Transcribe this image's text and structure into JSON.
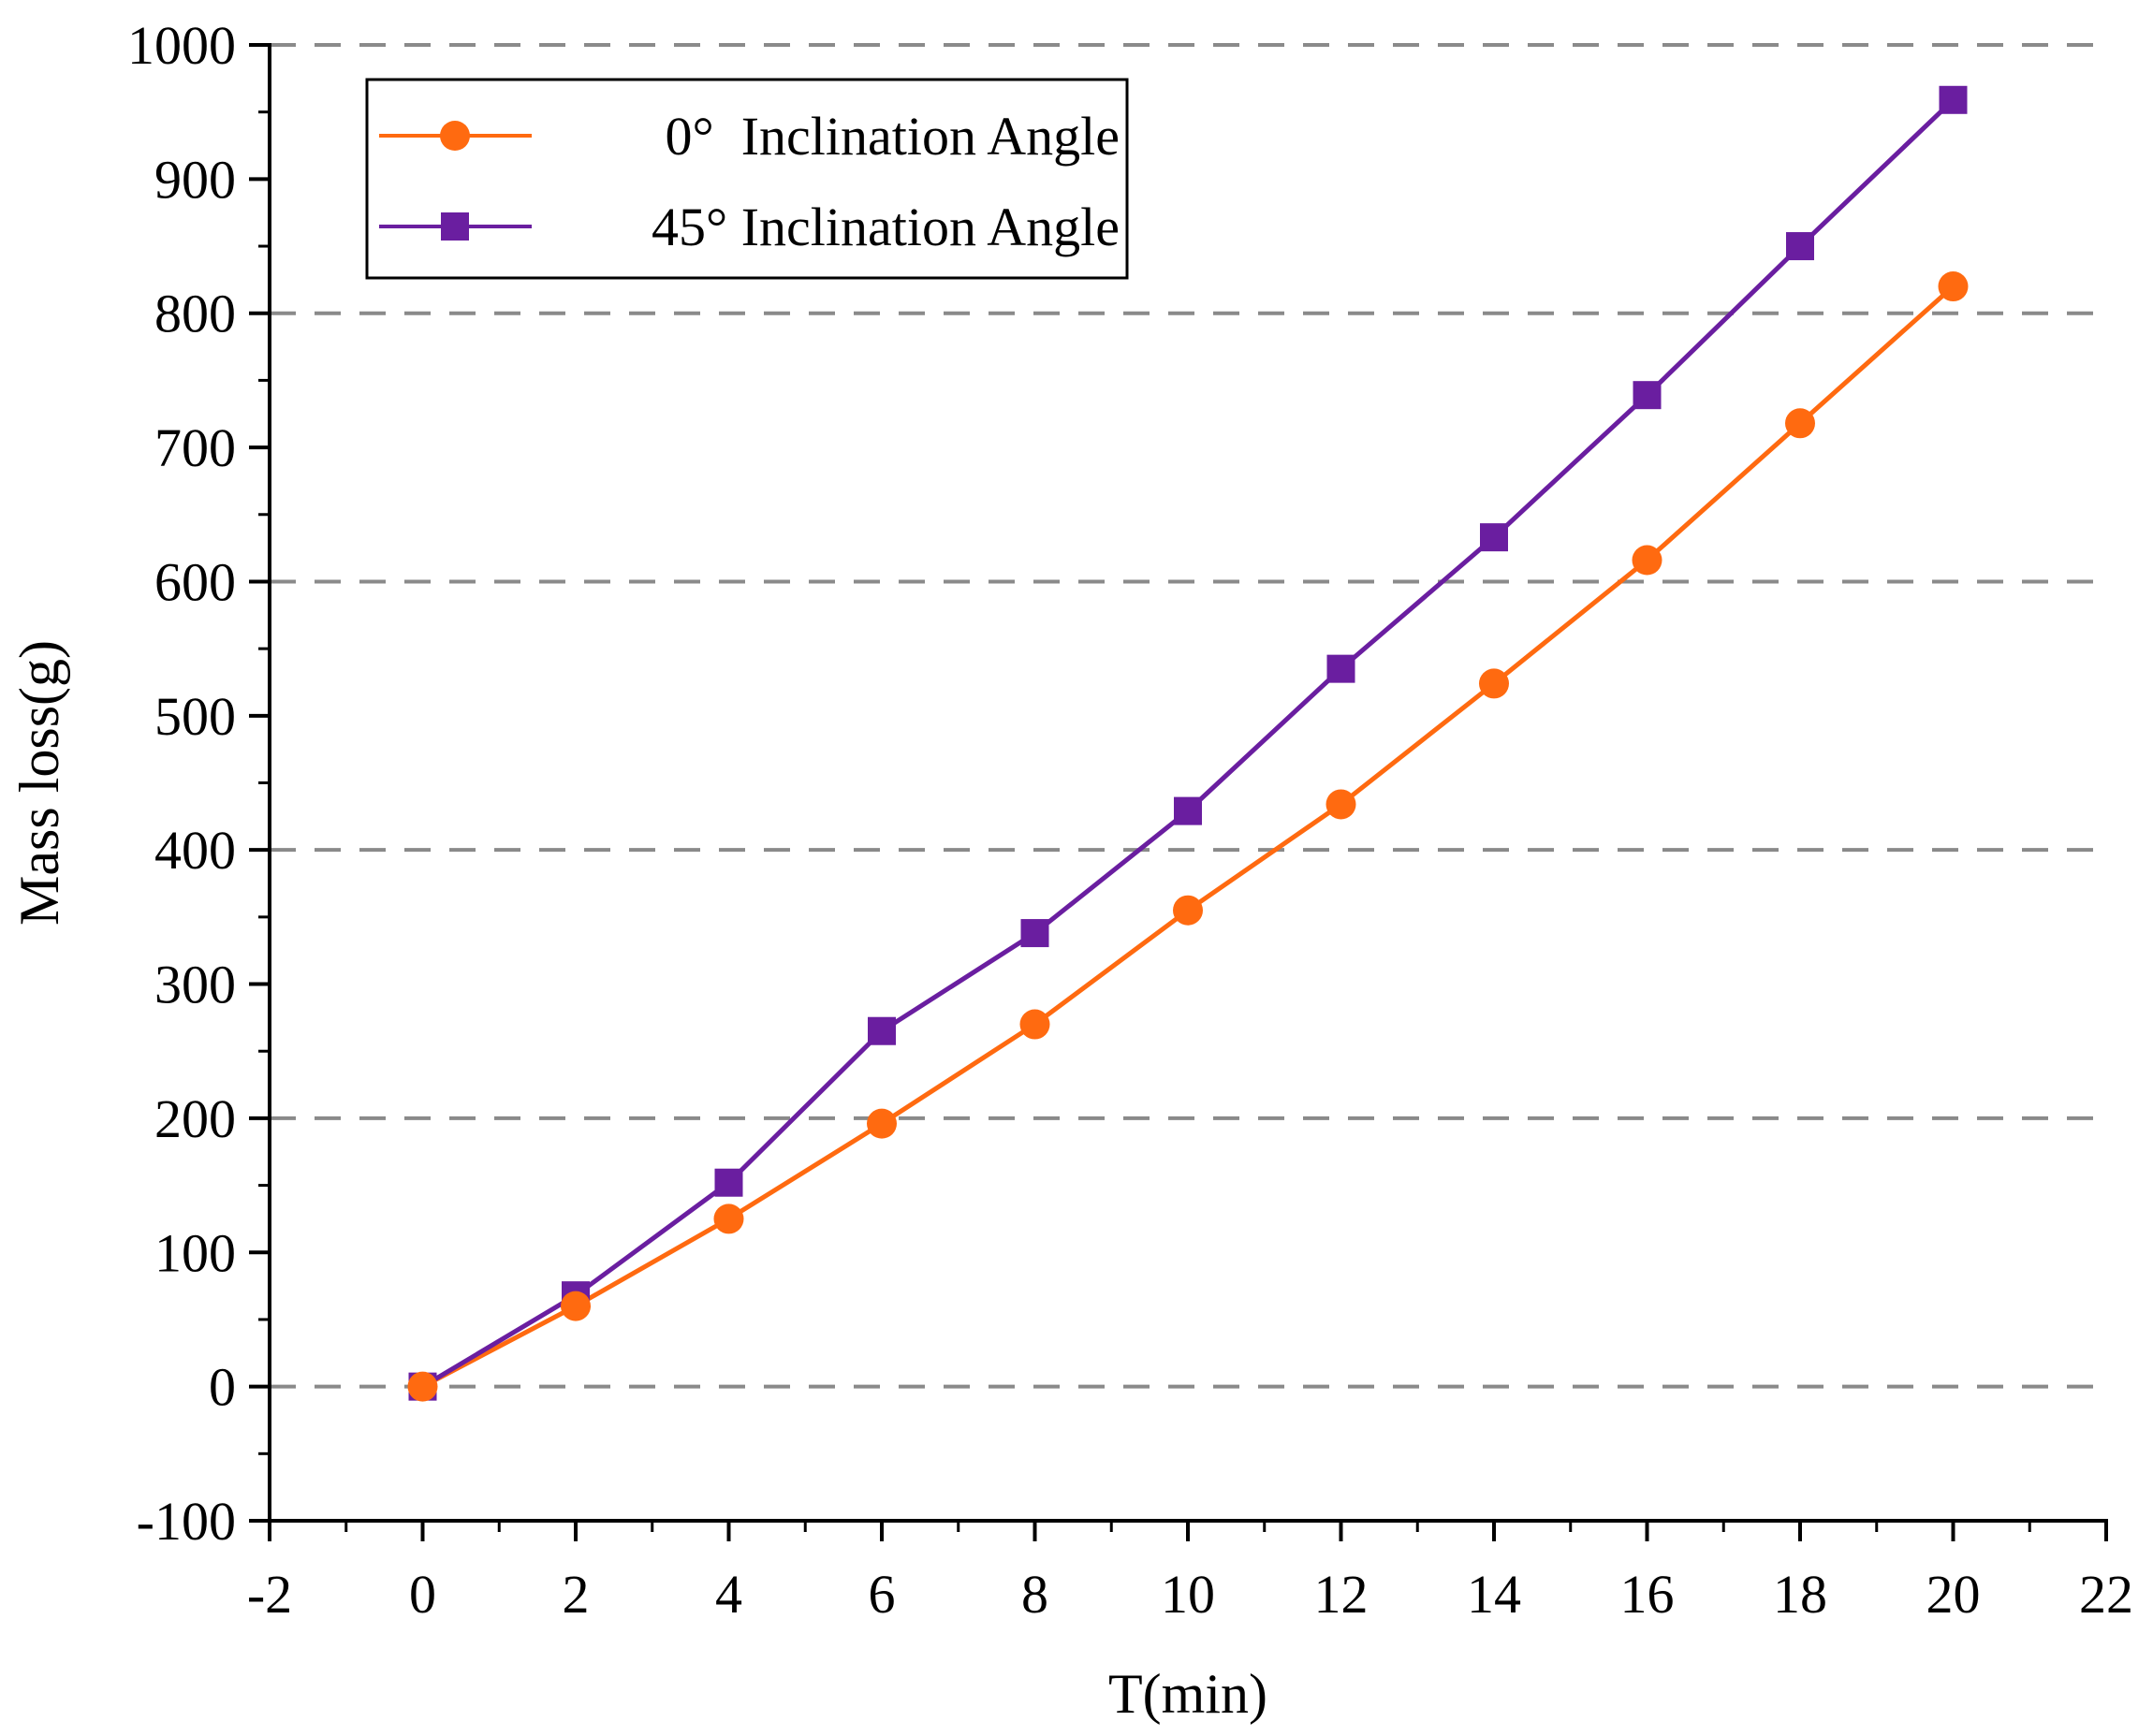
{
  "chart_data": {
    "type": "line",
    "title": "",
    "xlabel": "T(min)",
    "ylabel": "Mass loss(g)",
    "xlim": [
      -2,
      22
    ],
    "ylim": [
      -100,
      1000
    ],
    "x_ticks": [
      -2,
      0,
      2,
      4,
      6,
      8,
      10,
      12,
      14,
      16,
      18,
      20,
      22
    ],
    "x_tick_labels": [
      "-2",
      "0",
      "2",
      "4",
      "6",
      "8",
      "10",
      "12",
      "14",
      "16",
      "18",
      "20",
      "22"
    ],
    "y_ticks": [
      -100,
      0,
      100,
      200,
      300,
      400,
      500,
      600,
      700,
      800,
      900,
      1000
    ],
    "y_tick_labels": [
      "-100",
      "0",
      "100",
      "200",
      "300",
      "400",
      "500",
      "600",
      "700",
      "800",
      "900",
      "1000"
    ],
    "gridlines_y": [
      0,
      200,
      400,
      600,
      800,
      1000
    ],
    "grid": "dashed horizontal",
    "legend_position": "top-left",
    "x": [
      0,
      2,
      4,
      6,
      8,
      10,
      12,
      14,
      16,
      18,
      20
    ],
    "series": [
      {
        "name": "0°  Inclination Angle",
        "marker": "circle",
        "color": "#FF6A10",
        "values": [
          0,
          60,
          125,
          196,
          270,
          355,
          434,
          524,
          616,
          718,
          820
        ]
      },
      {
        "name": "45° Inclination Angle",
        "marker": "square",
        "color": "#6A1EA0",
        "values": [
          0,
          68,
          152,
          265,
          338,
          429,
          535,
          633,
          739,
          850,
          959
        ]
      }
    ]
  }
}
